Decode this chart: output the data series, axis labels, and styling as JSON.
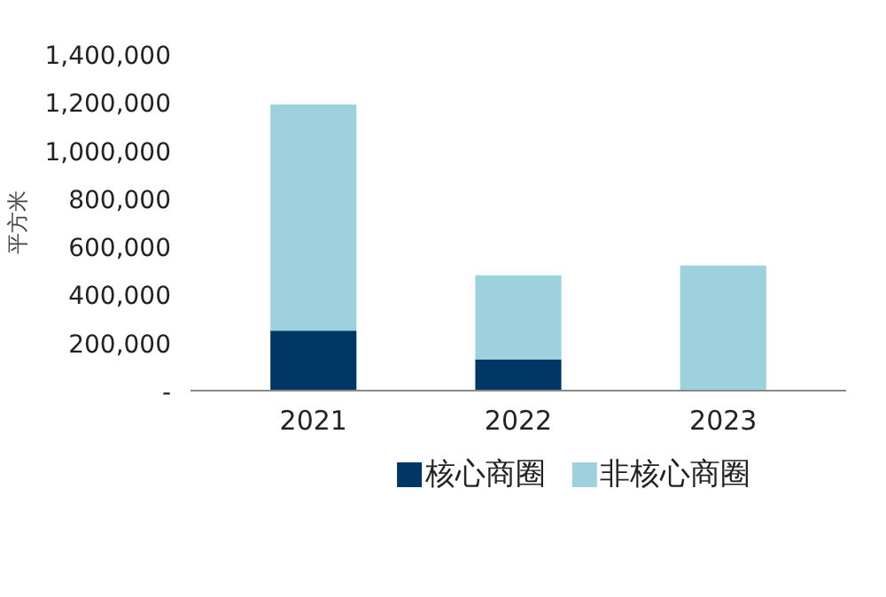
{
  "chart_data": {
    "type": "bar",
    "stacked": true,
    "ylabel": "平方米",
    "categories": [
      "2021",
      "2022",
      "2023"
    ],
    "series": [
      {
        "name": "核心商圈",
        "color": "#003764",
        "values": [
          250000,
          130000,
          0
        ]
      },
      {
        "name": "非核心商圈",
        "color": "#9dd1dd",
        "values": [
          940000,
          350000,
          520000
        ]
      }
    ],
    "ylim": [
      0,
      1400000
    ],
    "yticks": [
      {
        "value": 0,
        "label": "-"
      },
      {
        "value": 200000,
        "label": "200,000"
      },
      {
        "value": 400000,
        "label": "400,000"
      },
      {
        "value": 600000,
        "label": "600,000"
      },
      {
        "value": 800000,
        "label": "800,000"
      },
      {
        "value": 1000000,
        "label": "1,000,000"
      },
      {
        "value": 1200000,
        "label": "1,200,000"
      },
      {
        "value": 1400000,
        "label": "1,400,000"
      }
    ],
    "grid": false,
    "legend": "bottom"
  }
}
